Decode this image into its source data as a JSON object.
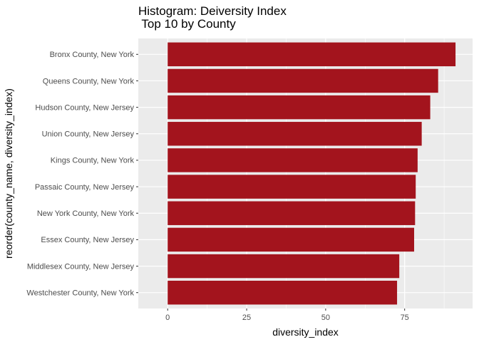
{
  "chart_data": {
    "type": "bar",
    "orientation": "horizontal",
    "title_line1": "Histogram: Deiversity Index",
    "title_line2": " Top 10 by County",
    "xlabel": "diversity_index",
    "ylabel": "reorder(county_name, diversity_index)",
    "categories": [
      "Bronx County, New York",
      "Queens County, New York",
      "Hudson County, New Jersey",
      "Union County, New Jersey",
      "Kings County, New York",
      "Passaic County, New Jersey",
      "New York County, New York",
      "Essex County, New Jersey",
      "Middlesex County, New Jersey",
      "Westchester County, New York"
    ],
    "values": [
      91.1,
      85.6,
      83.1,
      80.4,
      79.1,
      78.5,
      78.3,
      78.0,
      73.3,
      72.6
    ],
    "xlim": [
      -9.3,
      96.5
    ],
    "xticks": [
      0,
      25,
      50,
      75
    ],
    "grid": true,
    "colors": {
      "bar": "#a3141d",
      "panel": "#ebebeb",
      "grid_major": "#ffffff",
      "text": "#4d4d4d"
    }
  }
}
